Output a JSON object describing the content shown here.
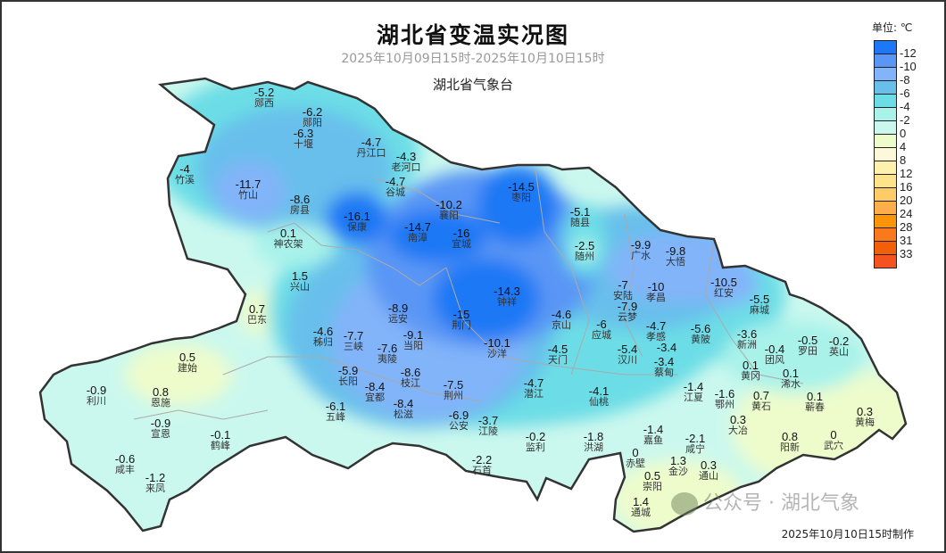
{
  "header": {
    "title": "湖北省变温实况图",
    "subtitle": "2025年10月09日15时-2025年10月10日15时",
    "organization": "湖北省气象台"
  },
  "legend": {
    "unit": "单位: ℃",
    "bins": [
      {
        "label": "-12",
        "color": "#1e78f5"
      },
      {
        "label": "-10",
        "color": "#5a96f5"
      },
      {
        "label": "-8",
        "color": "#82b4f9"
      },
      {
        "label": "-6",
        "color": "#68bfeb"
      },
      {
        "label": "-4",
        "color": "#6cdde6"
      },
      {
        "label": "-2",
        "color": "#a8f2ea"
      },
      {
        "label": "0",
        "color": "#cbf8ee"
      },
      {
        "label": "4",
        "color": "#eefccc"
      },
      {
        "label": "8",
        "color": "#fbf9d9"
      },
      {
        "label": "12",
        "color": "#fdf1ac"
      },
      {
        "label": "16",
        "color": "#fde48a"
      },
      {
        "label": "20",
        "color": "#fdcc66"
      },
      {
        "label": "24",
        "color": "#fbae4a"
      },
      {
        "label": "28",
        "color": "#fb9506"
      },
      {
        "label": "31",
        "color": "#f87a1c"
      },
      {
        "label": "33",
        "color": "#f25f08"
      },
      {
        "label": "",
        "color": "#f4521e"
      }
    ]
  },
  "stations": [
    {
      "name": "郧西",
      "value": "-5.2"
    },
    {
      "name": "郧阳",
      "value": "-6.2"
    },
    {
      "name": "十堰",
      "value": "-6.3"
    },
    {
      "name": "丹江口",
      "value": "-4.7"
    },
    {
      "name": "老河口",
      "value": "-4.3"
    },
    {
      "name": "谷城",
      "value": "-4.7"
    },
    {
      "name": "竹溪",
      "value": "-4"
    },
    {
      "name": "竹山",
      "value": "-11.7"
    },
    {
      "name": "房县",
      "value": "-8.6"
    },
    {
      "name": "保康",
      "value": "-16.1"
    },
    {
      "name": "襄阳",
      "value": "-10.2"
    },
    {
      "name": "南漳",
      "value": "-14.7"
    },
    {
      "name": "宜城",
      "value": "-16"
    },
    {
      "name": "枣阳",
      "value": "-14.5"
    },
    {
      "name": "随县",
      "value": "-5.1"
    },
    {
      "name": "随州",
      "value": "-2.5"
    },
    {
      "name": "广水",
      "value": "-9.9"
    },
    {
      "name": "大悟",
      "value": "-9.8"
    },
    {
      "name": "红安",
      "value": "-10.5"
    },
    {
      "name": "麻城",
      "value": "-5.5"
    },
    {
      "name": "安陆",
      "value": "-7"
    },
    {
      "name": "孝昌",
      "value": "-10"
    },
    {
      "name": "京山",
      "value": "-4.6"
    },
    {
      "name": "应城",
      "value": "-6"
    },
    {
      "name": "云梦",
      "value": "-7.9"
    },
    {
      "name": "孝感",
      "value": "-4.7"
    },
    {
      "name": "黄陂",
      "value": "-5.6"
    },
    {
      "name": "新洲",
      "value": "-3.6"
    },
    {
      "name": "汉川",
      "value": "-5.4"
    },
    {
      "name": "",
      "value": "-3.4"
    },
    {
      "name": "蔡甸",
      "value": "-3.4"
    },
    {
      "name": "天门",
      "value": "-4.5"
    },
    {
      "name": "神农架",
      "value": "0.1"
    },
    {
      "name": "兴山",
      "value": "1.5"
    },
    {
      "name": "巴东",
      "value": "0.7"
    },
    {
      "name": "秭归",
      "value": "-4.6"
    },
    {
      "name": "远安",
      "value": "-8.9"
    },
    {
      "name": "当阳",
      "value": "-9.1"
    },
    {
      "name": "三峡",
      "value": "-7.7"
    },
    {
      "name": "夷陵",
      "value": "-7.6"
    },
    {
      "name": "钟祥",
      "value": "-14.3"
    },
    {
      "name": "荆门",
      "value": "-15"
    },
    {
      "name": "沙洋",
      "value": "-10.1"
    },
    {
      "name": "长阳",
      "value": "-5.9"
    },
    {
      "name": "宜都",
      "value": "-8.4"
    },
    {
      "name": "枝江",
      "value": "-8.6"
    },
    {
      "name": "松滋",
      "value": "-8.4"
    },
    {
      "name": "荆州",
      "value": "-7.5"
    },
    {
      "name": "五峰",
      "value": "-6.1"
    },
    {
      "name": "公安",
      "value": "-6.9"
    },
    {
      "name": "江陵",
      "value": "-3.7"
    },
    {
      "name": "潜江",
      "value": "-4.7"
    },
    {
      "name": "仙桃",
      "value": "-4.1"
    },
    {
      "name": "江夏",
      "value": "-1.4"
    },
    {
      "name": "鄂州",
      "value": "-1.6"
    },
    {
      "name": "团风",
      "value": "-0.4"
    },
    {
      "name": "罗田",
      "value": "-0.5"
    },
    {
      "name": "英山",
      "value": "-0.2"
    },
    {
      "name": "黄冈",
      "value": "0.1"
    },
    {
      "name": "浠水",
      "value": "0.1"
    },
    {
      "name": "黄石",
      "value": "0.7"
    },
    {
      "name": "大冶",
      "value": "0.3"
    },
    {
      "name": "蕲春",
      "value": "0.1"
    },
    {
      "name": "黄梅",
      "value": "0.3"
    },
    {
      "name": "阳新",
      "value": "0.8"
    },
    {
      "name": "武穴",
      "value": "0"
    },
    {
      "name": "建始",
      "value": "0.5"
    },
    {
      "name": "利川",
      "value": "-0.9"
    },
    {
      "name": "恩施",
      "value": "0.8"
    },
    {
      "name": "宣恩",
      "value": "-0.9"
    },
    {
      "name": "鹤峰",
      "value": "-0.1"
    },
    {
      "name": "咸丰",
      "value": "-0.6"
    },
    {
      "name": "来凤",
      "value": "-1.2"
    },
    {
      "name": "监利",
      "value": "-0.2"
    },
    {
      "name": "洪湖",
      "value": "-1.8"
    },
    {
      "name": "石首",
      "value": "-2.2"
    },
    {
      "name": "嘉鱼",
      "value": "-1.4"
    },
    {
      "name": "赤壁",
      "value": "0"
    },
    {
      "name": "咸宁",
      "value": "-2.1"
    },
    {
      "name": "崇阳",
      "value": "0.5"
    },
    {
      "name": "金沙",
      "value": "1.3"
    },
    {
      "name": "通山",
      "value": "0.3"
    },
    {
      "name": "通城",
      "value": "1.4"
    }
  ],
  "footer": {
    "made_at": "2025年10月10日15时制作"
  },
  "watermark": "公众号 · 湖北气象"
}
